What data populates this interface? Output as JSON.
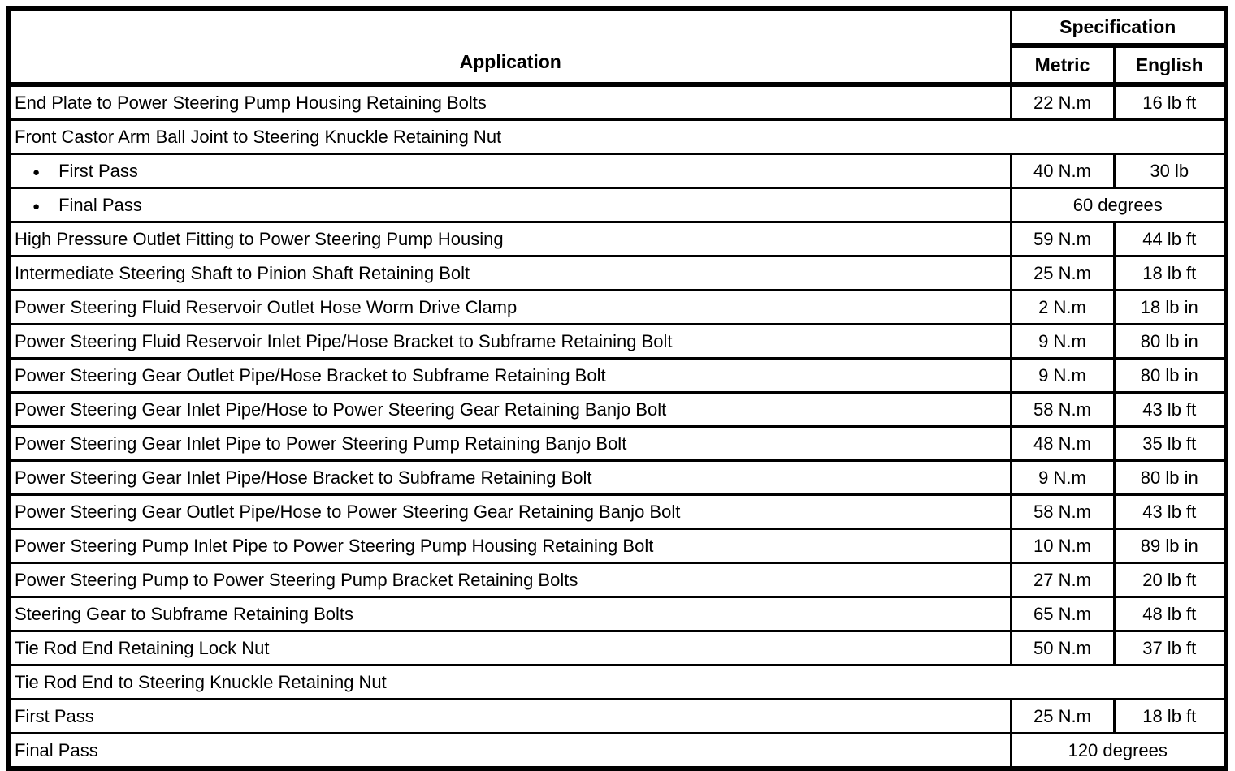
{
  "table": {
    "header": {
      "application": "Application",
      "specification": "Specification",
      "metric": "Metric",
      "english": "English"
    },
    "icons": {
      "bullet": "●"
    },
    "colors": {
      "border": "#000000",
      "background": "#ffffff",
      "text": "#000000"
    },
    "rows": [
      {
        "application": "End Plate to Power Steering Pump Housing Retaining Bolts",
        "metric": "22 N.m",
        "english": "16 lb ft"
      },
      {
        "application": "Front Castor Arm Ball Joint to Steering Knuckle Retaining Nut"
      },
      {
        "application": "First Pass",
        "metric": "40 N.m",
        "english": "30 lb",
        "bullet": true
      },
      {
        "application": "Final Pass",
        "spec": "60 degrees",
        "bullet": true
      },
      {
        "application": "High Pressure Outlet Fitting to Power Steering Pump Housing",
        "metric": "59 N.m",
        "english": "44 lb ft"
      },
      {
        "application": "Intermediate Steering Shaft to Pinion Shaft Retaining Bolt",
        "metric": "25 N.m",
        "english": "18 lb ft"
      },
      {
        "application": "Power Steering Fluid Reservoir Outlet Hose Worm Drive Clamp",
        "metric": "2 N.m",
        "english": "18 lb in"
      },
      {
        "application": "Power Steering Fluid Reservoir Inlet Pipe/Hose Bracket to Subframe Retaining Bolt",
        "metric": "9 N.m",
        "english": "80 lb in"
      },
      {
        "application": "Power Steering Gear Outlet Pipe/Hose Bracket to Subframe Retaining Bolt",
        "metric": "9 N.m",
        "english": "80 lb in"
      },
      {
        "application": "Power Steering Gear Inlet Pipe/Hose to Power Steering Gear Retaining Banjo Bolt",
        "metric": "58 N.m",
        "english": "43 lb ft"
      },
      {
        "application": "Power Steering Gear Inlet Pipe to Power Steering Pump Retaining Banjo Bolt",
        "metric": "48 N.m",
        "english": "35 lb ft"
      },
      {
        "application": "Power Steering Gear Inlet Pipe/Hose Bracket to Subframe Retaining Bolt",
        "metric": "9 N.m",
        "english": "80 lb in"
      },
      {
        "application": "Power Steering Gear Outlet Pipe/Hose to Power Steering Gear Retaining Banjo Bolt",
        "metric": "58 N.m",
        "english": "43 lb ft"
      },
      {
        "application": "Power Steering Pump Inlet Pipe to Power Steering Pump Housing Retaining Bolt",
        "metric": "10 N.m",
        "english": "89 lb in"
      },
      {
        "application": "Power Steering Pump to Power Steering Pump Bracket Retaining Bolts",
        "metric": "27 N.m",
        "english": "20 lb ft"
      },
      {
        "application": "Steering Gear to Subframe Retaining Bolts",
        "metric": "65 N.m",
        "english": "48 lb ft"
      },
      {
        "application": "Tie Rod End Retaining Lock Nut",
        "metric": "50 N.m",
        "english": "37 lb ft"
      },
      {
        "application": "Tie Rod End to Steering Knuckle Retaining Nut"
      },
      {
        "application": "First Pass",
        "metric": "25 N.m",
        "english": "18 lb ft"
      },
      {
        "application": "Final Pass",
        "spec": "120 degrees"
      }
    ]
  }
}
